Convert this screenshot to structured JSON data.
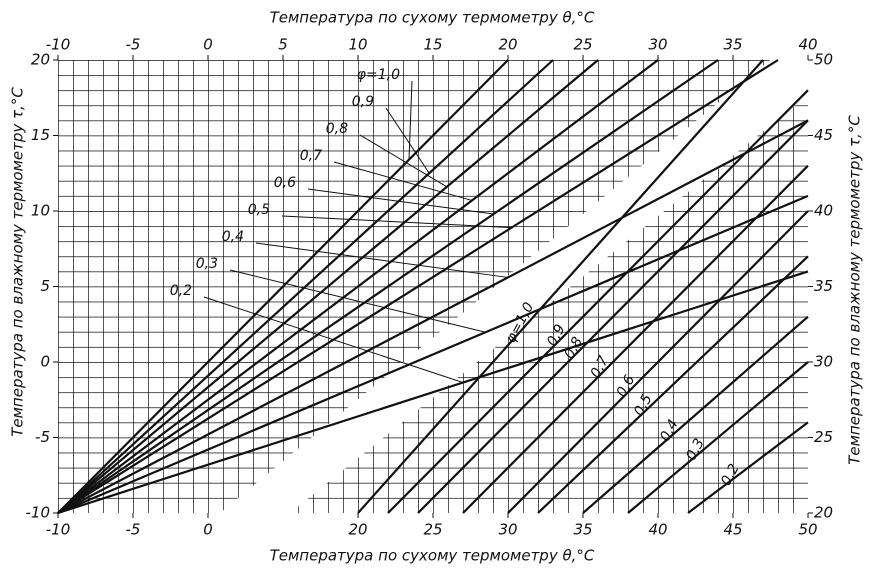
{
  "chart_data": [
    {
      "type": "line",
      "x_label": "Температура по сухому термометру θ,°С",
      "y_label": "Температура по влажному термометру τ,°С",
      "xlim": [
        -10,
        40
      ],
      "xticks": [
        -10,
        -5,
        0,
        5,
        10,
        15,
        20,
        25,
        30,
        35,
        40
      ],
      "bottom_xticks": [
        -10,
        -5,
        0
      ],
      "ylim": [
        -10,
        20
      ],
      "yticks": [
        -10,
        -5,
        0,
        5,
        10,
        15,
        20
      ],
      "series": [
        {
          "name": "φ=1,0",
          "color": "#111111",
          "x": [
            -10,
            20
          ],
          "values": [
            -10,
            20
          ]
        },
        {
          "name": "0,9",
          "color": "#111111",
          "x": [
            -10,
            23
          ],
          "values": [
            -10,
            20
          ]
        },
        {
          "name": "0,8",
          "color": "#111111",
          "x": [
            -10,
            26
          ],
          "values": [
            -10,
            20
          ]
        },
        {
          "name": "0,7",
          "color": "#111111",
          "x": [
            -10,
            30
          ],
          "values": [
            -10,
            20
          ]
        },
        {
          "name": "0,6",
          "color": "#111111",
          "x": [
            -10,
            34
          ],
          "values": [
            -10,
            20
          ]
        },
        {
          "name": "0,5",
          "color": "#111111",
          "x": [
            -10,
            38
          ],
          "values": [
            -10,
            20
          ]
        },
        {
          "name": "0,4",
          "color": "#111111",
          "x": [
            -10,
            40
          ],
          "values": [
            -10,
            16
          ]
        },
        {
          "name": "0,3",
          "color": "#111111",
          "x": [
            -10,
            40
          ],
          "values": [
            -10,
            11
          ]
        },
        {
          "name": "0,2",
          "color": "#111111",
          "x": [
            -10,
            40
          ],
          "values": [
            -10,
            6
          ]
        }
      ]
    },
    {
      "type": "line",
      "x_label": "Температура по сухому термометру θ,°С",
      "y_label": "Температура по влажному термометру τ,°С",
      "xlim": [
        0,
        50
      ],
      "xticks": [
        20,
        25,
        30,
        35,
        40,
        45,
        50
      ],
      "ylim": [
        20,
        50
      ],
      "yticks": [
        20,
        25,
        30,
        35,
        40,
        45,
        50
      ],
      "series": [
        {
          "name": "φ=1,0",
          "color": "#111111",
          "x": [
            20,
            47
          ],
          "values": [
            20,
            50
          ]
        },
        {
          "name": "0,9",
          "color": "#111111",
          "x": [
            22,
            50
          ],
          "values": [
            20,
            48
          ]
        },
        {
          "name": "0,8",
          "color": "#111111",
          "x": [
            24,
            50
          ],
          "values": [
            20,
            46
          ]
        },
        {
          "name": "0,7",
          "color": "#111111",
          "x": [
            27,
            50
          ],
          "values": [
            20,
            43
          ]
        },
        {
          "name": "0,6",
          "color": "#111111",
          "x": [
            30,
            50
          ],
          "values": [
            20,
            40
          ]
        },
        {
          "name": "0,5",
          "color": "#111111",
          "x": [
            32,
            50
          ],
          "values": [
            20,
            37
          ]
        },
        {
          "name": "0,4",
          "color": "#111111",
          "x": [
            35,
            50
          ],
          "values": [
            20,
            33
          ]
        },
        {
          "name": "0,3",
          "color": "#111111",
          "x": [
            38,
            50
          ],
          "values": [
            20,
            30
          ]
        },
        {
          "name": "0,2",
          "color": "#111111",
          "x": [
            42,
            50
          ],
          "values": [
            20,
            26
          ]
        }
      ]
    }
  ]
}
